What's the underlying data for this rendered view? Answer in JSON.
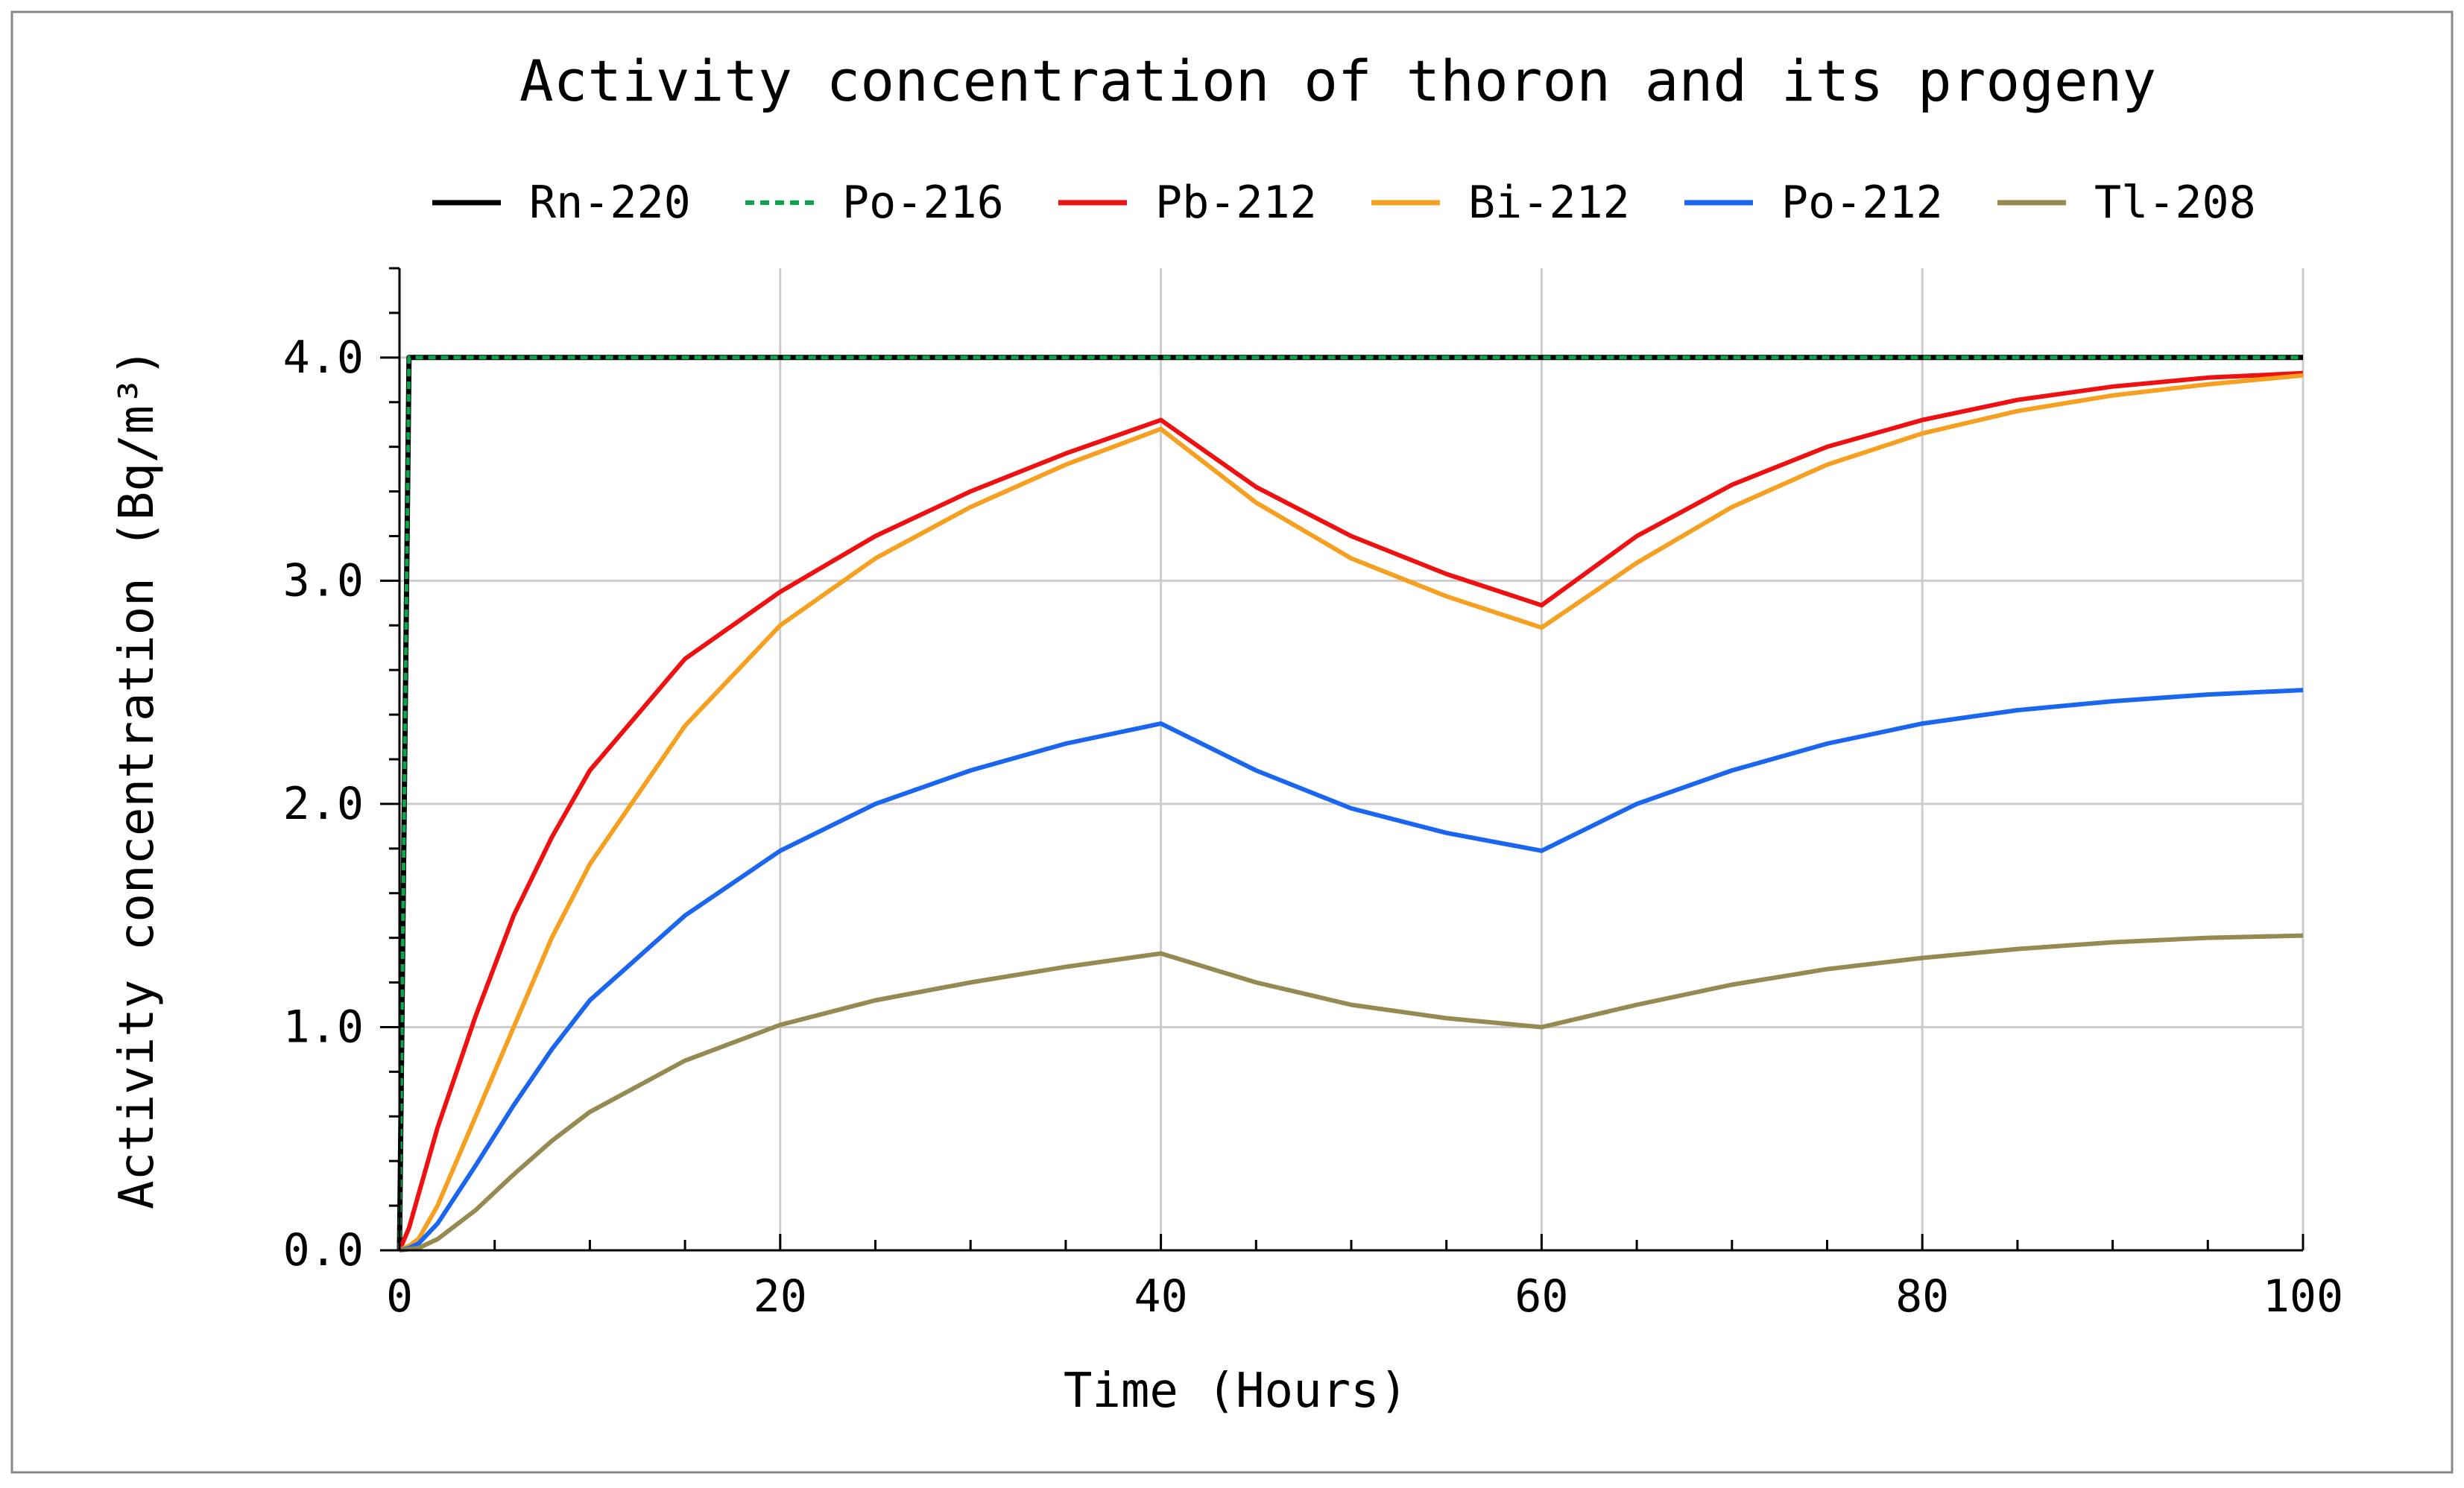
{
  "chart_data": {
    "type": "line",
    "title": "Activity concentration of thoron and its progeny",
    "xlabel": "Time (Hours)",
    "ylabel": "Activity concentration (Bq/m³)",
    "xlim": [
      0,
      100
    ],
    "ylim": [
      0,
      4.4
    ],
    "x_ticks": [
      0,
      20,
      40,
      60,
      80,
      100
    ],
    "x_tick_labels": [
      "0",
      "20",
      "40",
      "60",
      "80",
      "100"
    ],
    "y_ticks": [
      0,
      1,
      2,
      3,
      4
    ],
    "y_tick_labels": [
      "0.0",
      "1.0",
      "2.0",
      "3.0",
      "4.0"
    ],
    "grid": true,
    "legend_position": "top",
    "x": [
      0,
      0.5,
      1,
      2,
      4,
      6,
      8,
      10,
      15,
      20,
      25,
      30,
      35,
      40,
      45,
      50,
      55,
      60,
      65,
      70,
      75,
      80,
      85,
      90,
      95,
      100
    ],
    "series": [
      {
        "name": "Rn-220",
        "color": "#000000",
        "dash": "solid",
        "values": [
          0,
          4.0,
          4.0,
          4.0,
          4.0,
          4.0,
          4.0,
          4.0,
          4.0,
          4.0,
          4.0,
          4.0,
          4.0,
          4.0,
          4.0,
          4.0,
          4.0,
          4.0,
          4.0,
          4.0,
          4.0,
          4.0,
          4.0,
          4.0,
          4.0,
          4.0
        ]
      },
      {
        "name": "Po-216",
        "color": "#0aa64a",
        "dash": "dashed",
        "values": [
          0,
          4.0,
          4.0,
          4.0,
          4.0,
          4.0,
          4.0,
          4.0,
          4.0,
          4.0,
          4.0,
          4.0,
          4.0,
          4.0,
          4.0,
          4.0,
          4.0,
          4.0,
          4.0,
          4.0,
          4.0,
          4.0,
          4.0,
          4.0,
          4.0,
          4.0
        ]
      },
      {
        "name": "Pb-212",
        "color": "#ee1111",
        "dash": "solid",
        "values": [
          0,
          0.1,
          0.25,
          0.55,
          1.05,
          1.5,
          1.85,
          2.15,
          2.65,
          2.95,
          3.2,
          3.4,
          3.57,
          3.72,
          3.42,
          3.2,
          3.03,
          2.89,
          3.2,
          3.43,
          3.6,
          3.72,
          3.81,
          3.87,
          3.91,
          3.93
        ]
      },
      {
        "name": "Bi-212",
        "color": "#f5a020",
        "dash": "solid",
        "values": [
          0,
          0.02,
          0.05,
          0.2,
          0.6,
          1.0,
          1.4,
          1.73,
          2.35,
          2.8,
          3.1,
          3.33,
          3.52,
          3.68,
          3.35,
          3.1,
          2.93,
          2.79,
          3.08,
          3.33,
          3.52,
          3.66,
          3.76,
          3.83,
          3.88,
          3.92
        ]
      },
      {
        "name": "Po-212",
        "color": "#1a66ee",
        "dash": "solid",
        "values": [
          0,
          0.01,
          0.03,
          0.12,
          0.38,
          0.65,
          0.9,
          1.12,
          1.5,
          1.79,
          2.0,
          2.15,
          2.27,
          2.36,
          2.15,
          1.98,
          1.87,
          1.79,
          2.0,
          2.15,
          2.27,
          2.36,
          2.42,
          2.46,
          2.49,
          2.51
        ]
      },
      {
        "name": "Tl-208",
        "color": "#948a52",
        "dash": "solid",
        "values": [
          0,
          0.005,
          0.01,
          0.05,
          0.18,
          0.34,
          0.49,
          0.62,
          0.85,
          1.01,
          1.12,
          1.2,
          1.27,
          1.33,
          1.2,
          1.1,
          1.04,
          1.0,
          1.1,
          1.19,
          1.26,
          1.31,
          1.35,
          1.38,
          1.4,
          1.41
        ]
      }
    ]
  }
}
